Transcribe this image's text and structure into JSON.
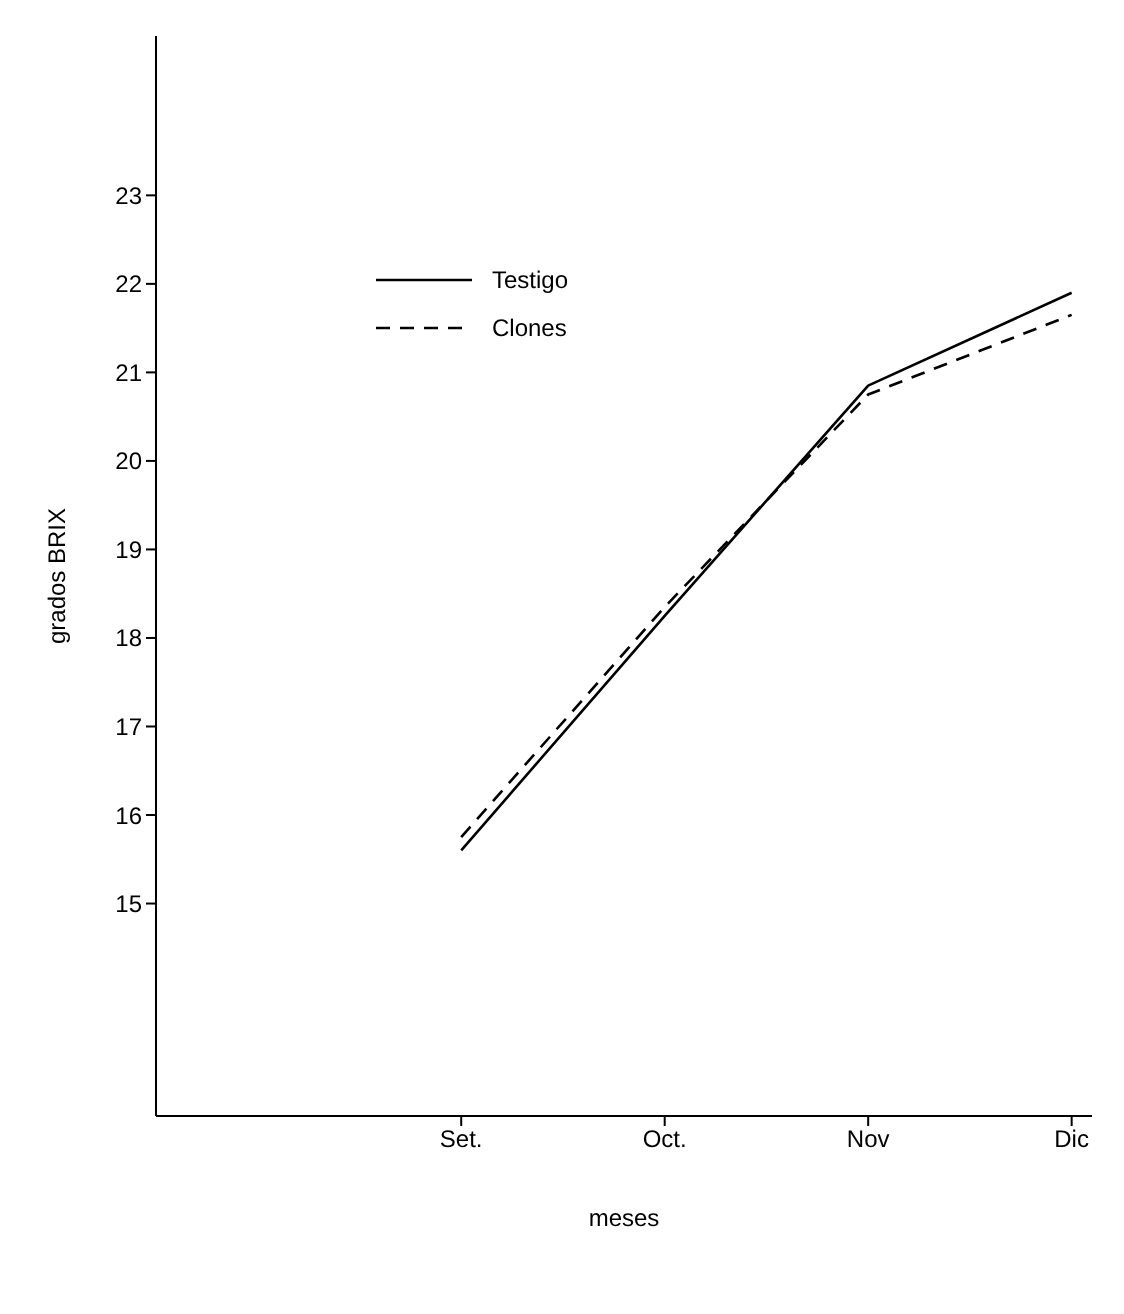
{
  "chart_data": {
    "type": "line",
    "xlabel": "meses",
    "ylabel": "grados BRIX",
    "categories": [
      "Set.",
      "Oct.",
      "Nov",
      "Dic"
    ],
    "series": [
      {
        "name": "Testigo",
        "color": "#000000",
        "line_style": "solid",
        "values": [
          15.6,
          18.25,
          20.85,
          21.9
        ]
      },
      {
        "name": "Clones",
        "color": "#000000",
        "line_style": "dashed",
        "values": [
          15.75,
          18.35,
          20.75,
          21.65
        ]
      }
    ],
    "ylim": [
      12.6,
      24.8
    ],
    "yticks": [
      15,
      16,
      17,
      18,
      19,
      20,
      21,
      22,
      23
    ],
    "grid": false,
    "legend": "top left",
    "marker": "none"
  }
}
